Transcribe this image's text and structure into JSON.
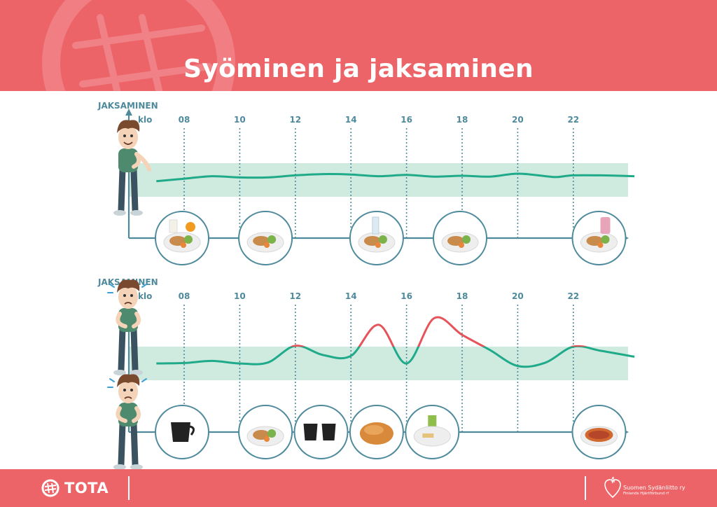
{
  "title": "Syöminen ja jaksaminen",
  "footer": {
    "logo_text": "TOTA",
    "partner_line1": "Suomen Sydänliitto ry",
    "partner_line2": "Finlands Hjärtförbund rf"
  },
  "colors": {
    "brand": "#ec6468",
    "axis": "#4e8a9c",
    "band": "#cfeadf",
    "good_curve": "#1faa8a",
    "bad_curve": "#e5545a"
  },
  "charts": [
    {
      "ylabel": "JAKSAMINEN",
      "unit_label": "klo",
      "hour_ticks": [
        "08",
        "10",
        "12",
        "14",
        "16",
        "18",
        "20",
        "22"
      ],
      "character": "relaxed-character",
      "curve": [
        [
          7,
          -0.15
        ],
        [
          8,
          0.15
        ],
        [
          9,
          0.45
        ],
        [
          10,
          0.3
        ],
        [
          11,
          0.3
        ],
        [
          12,
          0.55
        ],
        [
          13,
          0.7
        ],
        [
          14,
          0.65
        ],
        [
          15,
          0.45
        ],
        [
          16,
          0.6
        ],
        [
          17,
          0.4
        ],
        [
          18,
          0.5
        ],
        [
          19,
          0.4
        ],
        [
          20,
          0.75
        ],
        [
          21,
          0.45
        ],
        [
          21.4,
          0.35
        ],
        [
          22,
          0.55
        ],
        [
          23,
          0.55
        ],
        [
          24.2,
          0.45
        ]
      ],
      "meals": [
        {
          "name": "breakfast-plate",
          "at": 8
        },
        {
          "name": "lunch-plate",
          "at": 11
        },
        {
          "name": "snack-plate",
          "at": 15
        },
        {
          "name": "dinner-plate",
          "at": 18
        },
        {
          "name": "evening-snack-plate",
          "at": 23
        }
      ]
    },
    {
      "ylabel": "JAKSAMINEN",
      "unit_label": "klo",
      "hour_ticks": [
        "08",
        "10",
        "12",
        "14",
        "16",
        "18",
        "20",
        "22"
      ],
      "character": "stressed-character",
      "curve": [
        [
          7,
          0
        ],
        [
          8,
          0.05
        ],
        [
          9,
          0.3
        ],
        [
          10,
          0
        ],
        [
          11,
          0.1
        ],
        [
          12,
          2.1
        ],
        [
          13,
          1.0
        ],
        [
          14,
          0.9
        ],
        [
          15,
          4.6
        ],
        [
          16,
          0
        ],
        [
          17,
          5.4
        ],
        [
          18,
          3.4
        ],
        [
          19,
          1.6
        ],
        [
          20,
          -0.3
        ],
        [
          21,
          0.1
        ],
        [
          22,
          2.0
        ],
        [
          23,
          1.5
        ],
        [
          24.2,
          0.8
        ]
      ],
      "meals": [
        {
          "name": "coffee-cup",
          "at": 8
        },
        {
          "name": "lunch-plate",
          "at": 11
        },
        {
          "name": "two-coffee-cups",
          "at": 13
        },
        {
          "name": "pastry",
          "at": 15
        },
        {
          "name": "juice-and-snack",
          "at": 17
        },
        {
          "name": "pizza",
          "at": 23
        }
      ]
    }
  ]
}
